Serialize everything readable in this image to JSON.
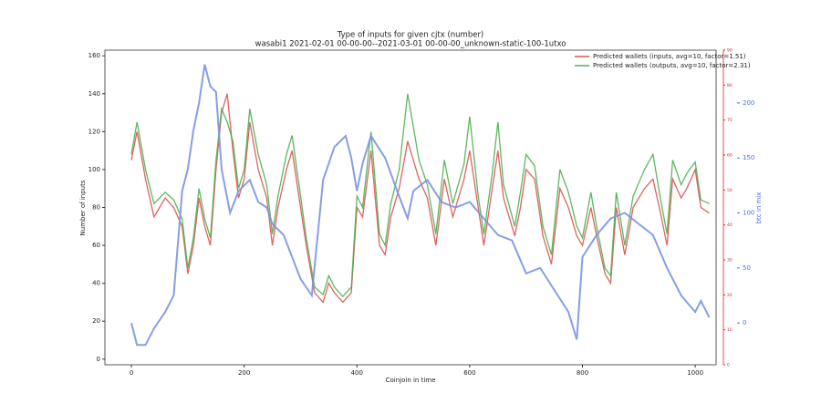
{
  "chart_data": {
    "type": "line",
    "title": "Type of inputs for given cjtx (number)",
    "subtitle": "wasabi1 2021-02-01 00-00-00--2021-03-01 00-00-00_unknown-static-100-1utxo",
    "xlabel": "Coinjoin in time",
    "ylabel": "Number of inputs",
    "y2label": "btc in mix",
    "xlim": [
      -47,
      1037
    ],
    "xticks": [
      0,
      200,
      400,
      600,
      800,
      1000
    ],
    "ylim": [
      -3,
      163
    ],
    "yticks": [
      0,
      20,
      40,
      60,
      80,
      100,
      120,
      140,
      160
    ],
    "y2lim": [
      -38,
      248
    ],
    "y2ticks": [
      0,
      50,
      100,
      150,
      200
    ],
    "y2color": "#4a6fe3",
    "y3lim": [
      0,
      90
    ],
    "y3ticks": [
      0,
      10,
      20,
      30,
      40,
      50,
      60,
      70,
      80,
      90
    ],
    "y3color": "#d62728",
    "legend": "upper right",
    "series": [
      {
        "name": "Predicted wallets (inputs, avg=10, factor=1.51)",
        "color": "#d9534f",
        "x": [
          0,
          10,
          25,
          40,
          50,
          60,
          75,
          90,
          100,
          110,
          120,
          130,
          140,
          150,
          160,
          170,
          180,
          190,
          200,
          210,
          225,
          240,
          250,
          260,
          275,
          285,
          300,
          310,
          325,
          340,
          350,
          360,
          375,
          390,
          400,
          410,
          425,
          440,
          450,
          460,
          475,
          490,
          510,
          525,
          540,
          555,
          570,
          590,
          600,
          615,
          625,
          640,
          650,
          660,
          680,
          690,
          700,
          715,
          730,
          745,
          760,
          775,
          790,
          800,
          815,
          825,
          840,
          850,
          860,
          875,
          890,
          910,
          925,
          940,
          950,
          960,
          975,
          985,
          1000,
          1010,
          1025
        ],
        "values": [
          105,
          120,
          95,
          75,
          80,
          85,
          80,
          70,
          45,
          60,
          85,
          70,
          60,
          100,
          130,
          140,
          110,
          85,
          95,
          125,
          100,
          85,
          60,
          80,
          100,
          110,
          80,
          60,
          35,
          30,
          40,
          35,
          30,
          35,
          80,
          75,
          110,
          60,
          55,
          75,
          90,
          115,
          95,
          85,
          60,
          95,
          75,
          95,
          110,
          80,
          60,
          90,
          110,
          85,
          65,
          80,
          100,
          95,
          65,
          50,
          90,
          80,
          65,
          60,
          80,
          65,
          45,
          40,
          80,
          55,
          80,
          90,
          95,
          75,
          60,
          95,
          85,
          90,
          100,
          80,
          77
        ]
      },
      {
        "name": "Predicted wallets (outputs, avg=10, factor=2.31)",
        "color": "#4caf50",
        "x": [
          0,
          10,
          25,
          40,
          50,
          60,
          75,
          90,
          100,
          110,
          120,
          130,
          140,
          150,
          160,
          170,
          180,
          190,
          200,
          210,
          225,
          240,
          250,
          260,
          275,
          285,
          300,
          310,
          325,
          340,
          350,
          360,
          375,
          390,
          400,
          410,
          425,
          440,
          450,
          460,
          475,
          490,
          510,
          525,
          540,
          555,
          570,
          590,
          600,
          615,
          625,
          640,
          650,
          660,
          680,
          690,
          700,
          715,
          730,
          745,
          760,
          775,
          790,
          800,
          815,
          825,
          840,
          850,
          860,
          875,
          890,
          910,
          925,
          940,
          950,
          960,
          975,
          985,
          1000,
          1010,
          1025
        ],
        "values": [
          108,
          125,
          100,
          82,
          85,
          88,
          84,
          74,
          48,
          64,
          90,
          74,
          64,
          105,
          132,
          125,
          115,
          90,
          100,
          132,
          108,
          92,
          66,
          86,
          108,
          118,
          86,
          64,
          38,
          34,
          44,
          38,
          33,
          38,
          86,
          80,
          120,
          66,
          60,
          82,
          100,
          140,
          105,
          92,
          66,
          105,
          82,
          103,
          128,
          86,
          66,
          98,
          125,
          92,
          70,
          88,
          108,
          102,
          70,
          55,
          100,
          88,
          70,
          64,
          88,
          70,
          48,
          44,
          88,
          60,
          86,
          100,
          108,
          82,
          66,
          105,
          92,
          98,
          104,
          84,
          82
        ]
      },
      {
        "name": "btc in mix",
        "color": "#7b93e0",
        "axis": "y2",
        "x": [
          0,
          10,
          25,
          40,
          60,
          75,
          90,
          100,
          110,
          120,
          130,
          140,
          150,
          160,
          175,
          190,
          210,
          225,
          240,
          250,
          270,
          285,
          300,
          320,
          340,
          360,
          380,
          390,
          400,
          410,
          425,
          450,
          475,
          490,
          500,
          525,
          550,
          575,
          600,
          625,
          650,
          675,
          700,
          725,
          750,
          775,
          790,
          800,
          825,
          850,
          875,
          900,
          925,
          950,
          975,
          1000,
          1010,
          1025
        ],
        "values": [
          0,
          -20,
          -20,
          -5,
          10,
          25,
          120,
          140,
          175,
          200,
          235,
          215,
          210,
          140,
          100,
          120,
          130,
          110,
          105,
          90,
          80,
          60,
          40,
          25,
          130,
          160,
          170,
          150,
          120,
          145,
          170,
          150,
          115,
          95,
          120,
          130,
          110,
          105,
          110,
          95,
          80,
          75,
          45,
          50,
          30,
          10,
          -15,
          60,
          80,
          95,
          100,
          90,
          80,
          50,
          25,
          10,
          20,
          5
        ]
      }
    ]
  }
}
